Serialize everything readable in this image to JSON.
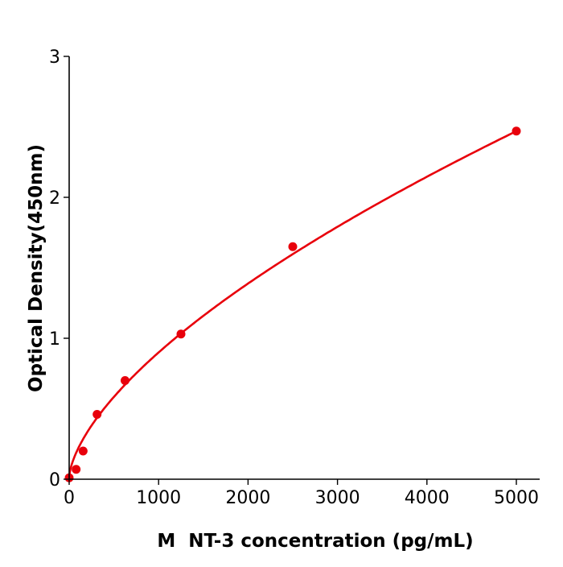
{
  "chart_data": {
    "type": "scatter",
    "title": "",
    "xlabel": "M  NT-3 concentration (pg/mL)",
    "ylabel": "Optical Density(450nm)",
    "xlim": [
      0,
      5250
    ],
    "ylim": [
      0,
      3
    ],
    "xticks": [
      "0",
      "1000",
      "2000",
      "3000",
      "4000",
      "5000"
    ],
    "yticks": [
      "0",
      "1",
      "2",
      "3"
    ],
    "grid": false,
    "color": "#e8000b",
    "points": [
      {
        "x": 0,
        "y": 0.01
      },
      {
        "x": 78,
        "y": 0.07
      },
      {
        "x": 156,
        "y": 0.2
      },
      {
        "x": 312,
        "y": 0.46
      },
      {
        "x": 625,
        "y": 0.7
      },
      {
        "x": 1250,
        "y": 1.03
      },
      {
        "x": 2500,
        "y": 1.65
      },
      {
        "x": 5000,
        "y": 2.47
      }
    ],
    "fit_line": true
  }
}
